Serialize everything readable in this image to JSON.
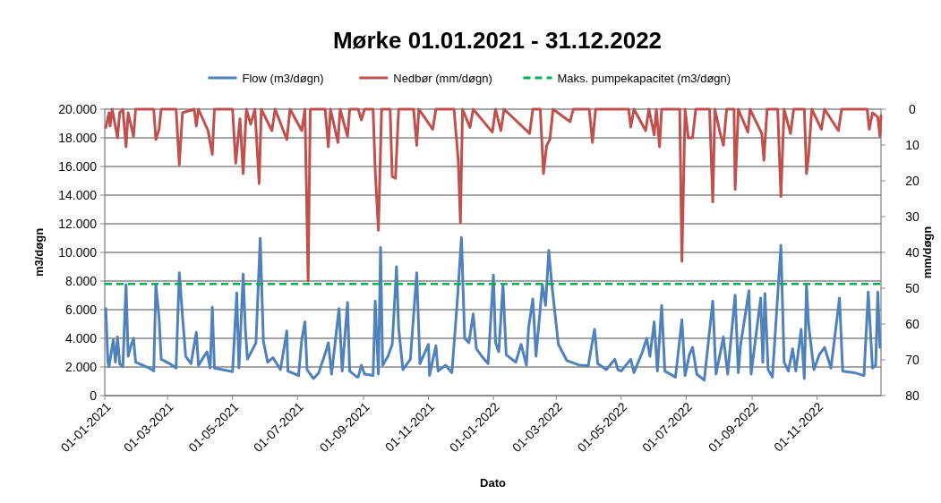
{
  "chart_data": {
    "type": "line",
    "title": "Mørke 01.01.2021 - 31.12.2022",
    "xlabel": "Dato",
    "ylabel": "m3/døgn",
    "y2label": "mm/døgn",
    "legend": "top",
    "grid": "y",
    "xlim": [
      "2021-01-01",
      "2022-12-31"
    ],
    "xticks": [
      {
        "value": "2021-01-01",
        "label": "01-01-2021"
      },
      {
        "value": "2021-03-01",
        "label": "01-03-2021"
      },
      {
        "value": "2021-05-01",
        "label": "01-05-2021"
      },
      {
        "value": "2021-07-01",
        "label": "01-07-2021"
      },
      {
        "value": "2021-09-01",
        "label": "01-09-2021"
      },
      {
        "value": "2021-11-01",
        "label": "01-11-2021"
      },
      {
        "value": "2022-01-01",
        "label": "01-01-2022"
      },
      {
        "value": "2022-03-01",
        "label": "01-03-2022"
      },
      {
        "value": "2022-05-01",
        "label": "01-05-2022"
      },
      {
        "value": "2022-07-01",
        "label": "01-07-2022"
      },
      {
        "value": "2022-09-01",
        "label": "01-09-2022"
      },
      {
        "value": "2022-11-01",
        "label": "01-11-2022"
      }
    ],
    "ylim": [
      0,
      20000
    ],
    "yticks": [
      0,
      {
        "value": 2000,
        "label": "2.000"
      },
      {
        "value": 4000,
        "label": "4.000"
      },
      {
        "value": 6000,
        "label": "6.000"
      },
      {
        "value": 8000,
        "label": "8.000"
      },
      {
        "value": 10000,
        "label": "10.000"
      },
      {
        "value": 12000,
        "label": "12.000"
      },
      {
        "value": 14000,
        "label": "14.000"
      },
      {
        "value": 16000,
        "label": "16.000"
      },
      {
        "value": 18000,
        "label": "18.000"
      },
      {
        "value": 20000,
        "label": "20.000"
      }
    ],
    "y2lim": [
      80,
      0
    ],
    "y2ticks": [
      0,
      10,
      20,
      30,
      40,
      50,
      60,
      70,
      80
    ],
    "series": [
      {
        "name": "Flow (m3/døgn)",
        "color": "#4f81bd",
        "x": [
          "2021-01-02",
          "2021-01-04",
          "2021-01-05",
          "2021-01-09",
          "2021-01-11",
          "2021-01-13",
          "2021-01-15",
          "2021-01-18",
          "2021-01-21",
          "2021-01-23",
          "2021-01-26",
          "2021-01-28",
          "2021-01-30",
          "2021-02-12",
          "2021-02-16",
          "2021-02-18",
          "2021-02-21",
          "2021-02-23",
          "2021-03-03",
          "2021-03-09",
          "2021-03-12",
          "2021-03-15",
          "2021-03-18",
          "2021-03-23",
          "2021-03-28",
          "2021-03-30",
          "2021-04-07",
          "2021-04-10",
          "2021-04-12",
          "2021-04-14",
          "2021-05-01",
          "2021-05-05",
          "2021-05-07",
          "2021-05-11",
          "2021-05-13",
          "2021-05-15",
          "2021-05-23",
          "2021-05-27",
          "2021-05-30",
          "2021-06-03",
          "2021-06-08",
          "2021-06-15",
          "2021-06-21",
          "2021-06-22",
          "2021-07-02",
          "2021-07-05",
          "2021-07-08",
          "2021-07-10",
          "2021-07-16",
          "2021-07-21",
          "2021-07-28",
          "2021-07-30",
          "2021-08-02",
          "2021-08-09",
          "2021-08-12",
          "2021-08-17",
          "2021-08-19",
          "2021-08-26",
          "2021-08-27",
          "2021-08-30",
          "2021-09-02",
          "2021-09-10",
          "2021-09-12",
          "2021-09-15",
          "2021-09-17",
          "2021-09-19",
          "2021-09-24",
          "2021-09-28",
          "2021-10-02",
          "2021-10-04",
          "2021-10-08",
          "2021-10-15",
          "2021-10-21",
          "2021-10-24",
          "2021-11-01",
          "2021-11-02",
          "2021-11-08",
          "2021-11-10",
          "2021-11-17",
          "2021-11-23",
          "2021-11-28",
          "2021-12-02",
          "2021-12-05",
          "2021-12-09",
          "2021-12-13",
          "2021-12-16",
          "2021-12-21",
          "2021-12-27",
          "2022-01-01",
          "2022-01-03",
          "2022-01-06",
          "2022-01-10",
          "2022-01-13",
          "2022-01-22",
          "2022-01-27",
          "2022-02-01",
          "2022-02-03",
          "2022-02-07",
          "2022-02-10",
          "2022-02-16",
          "2022-02-19",
          "2022-02-22",
          "2022-02-25",
          "2022-03-03",
          "2022-03-11",
          "2022-03-23",
          "2022-03-31",
          "2022-04-06",
          "2022-04-09",
          "2022-04-17",
          "2022-04-25",
          "2022-04-28",
          "2022-05-01",
          "2022-05-10",
          "2022-05-13",
          "2022-05-21",
          "2022-05-25",
          "2022-05-28",
          "2022-06-01",
          "2022-06-04",
          "2022-06-08",
          "2022-06-11",
          "2022-06-21",
          "2022-06-27",
          "2022-06-30",
          "2022-07-04",
          "2022-07-07",
          "2022-07-11",
          "2022-07-18",
          "2022-07-26",
          "2022-07-29",
          "2022-08-02",
          "2022-08-05",
          "2022-08-09",
          "2022-08-16",
          "2022-08-19",
          "2022-08-21",
          "2022-08-29",
          "2022-08-31",
          "2022-09-09",
          "2022-09-11",
          "2022-09-13",
          "2022-09-16",
          "2022-09-20",
          "2022-09-28",
          "2022-10-01",
          "2022-10-05",
          "2022-10-09",
          "2022-10-12",
          "2022-10-17",
          "2022-10-20",
          "2022-10-22",
          "2022-10-24",
          "2022-10-29",
          "2022-11-03",
          "2022-11-08",
          "2022-11-14",
          "2022-11-22",
          "2022-11-25",
          "2022-12-06",
          "2022-12-15",
          "2022-12-19",
          "2022-12-23",
          "2022-12-26",
          "2022-12-28",
          "2022-12-30"
        ],
        "values": [
          6080,
          2330,
          2020,
          3900,
          2330,
          4100,
          2230,
          2020,
          7750,
          2750,
          3580,
          4000,
          2330,
          1920,
          1710,
          7750,
          5460,
          2540,
          2230,
          1920,
          8580,
          5560,
          2750,
          2230,
          4420,
          2120,
          3060,
          1920,
          6190,
          1920,
          1670,
          7170,
          1920,
          8480,
          4730,
          2540,
          3690,
          10980,
          3790,
          2330,
          2650,
          1810,
          4520,
          1710,
          1400,
          3900,
          5150,
          1810,
          1190,
          1600,
          3170,
          3690,
          1500,
          6080,
          1710,
          6500,
          1710,
          1290,
          1290,
          2120,
          1500,
          1400,
          6600,
          1500,
          10350,
          2120,
          2750,
          3580,
          9000,
          4730,
          1810,
          2540,
          8580,
          2230,
          3580,
          1400,
          3480,
          1710,
          2120,
          1600,
          6500,
          11040,
          4000,
          3690,
          5710,
          3270,
          2750,
          2230,
          8420,
          3690,
          3060,
          7750,
          2850,
          2330,
          3580,
          2120,
          4730,
          6750,
          2750,
          7750,
          6290,
          10140,
          7650,
          3580,
          2440,
          2120,
          2080,
          4620,
          2230,
          1810,
          2540,
          1810,
          1710,
          2540,
          1600,
          3060,
          4000,
          2750,
          5150,
          1710,
          6290,
          1710,
          1290,
          5290,
          1400,
          2850,
          3370,
          1500,
          1080,
          6600,
          1500,
          2960,
          4100,
          1500,
          7020,
          1600,
          3480,
          7330,
          1500,
          6810,
          2330,
          7120,
          1810,
          1290,
          10500,
          2330,
          1710,
          3270,
          1710,
          4620,
          1190,
          7750,
          4940,
          1810,
          2850,
          3370,
          1920,
          6810,
          1710,
          1600,
          1400,
          7230,
          1920,
          2120,
          7230,
          3370
        ]
      },
      {
        "name": "Nedbør (mm/døgn)",
        "color": "#c0504d",
        "axis": "y2",
        "x": [
          "2021-01-02",
          "2021-01-05",
          "2021-01-06",
          "2021-01-08",
          "2021-01-13",
          "2021-01-15",
          "2021-01-18",
          "2021-01-21",
          "2021-01-23",
          "2021-01-28",
          "2021-01-30",
          "2021-02-16",
          "2021-02-18",
          "2021-02-21",
          "2021-02-23",
          "2021-03-09",
          "2021-03-12",
          "2021-03-15",
          "2021-03-26",
          "2021-03-28",
          "2021-03-30",
          "2021-04-08",
          "2021-04-12",
          "2021-04-14",
          "2021-05-01",
          "2021-05-04",
          "2021-05-08",
          "2021-05-11",
          "2021-05-14",
          "2021-05-18",
          "2021-05-22",
          "2021-05-26",
          "2021-05-28",
          "2021-06-07",
          "2021-06-10",
          "2021-06-21",
          "2021-06-24",
          "2021-07-05",
          "2021-07-08",
          "2021-07-11",
          "2021-07-13",
          "2021-07-27",
          "2021-07-30",
          "2021-08-01",
          "2021-08-08",
          "2021-08-10",
          "2021-08-17",
          "2021-08-19",
          "2021-08-27",
          "2021-08-30",
          "2021-09-02",
          "2021-09-10",
          "2021-09-12",
          "2021-09-15",
          "2021-09-18",
          "2021-09-26",
          "2021-09-28",
          "2021-10-01",
          "2021-10-04",
          "2021-10-18",
          "2021-10-21",
          "2021-10-23",
          "2021-11-05",
          "2021-11-08",
          "2021-11-25",
          "2021-11-29",
          "2021-12-01",
          "2021-12-03",
          "2021-12-10",
          "2021-12-13",
          "2021-12-31",
          "2022-01-03",
          "2022-01-08",
          "2022-01-11",
          "2022-02-04",
          "2022-02-07",
          "2022-02-14",
          "2022-02-17",
          "2022-02-20",
          "2022-02-23",
          "2022-02-26",
          "2022-03-14",
          "2022-03-17",
          "2022-04-01",
          "2022-04-04",
          "2022-04-07",
          "2022-05-08",
          "2022-05-10",
          "2022-05-13",
          "2022-05-24",
          "2022-05-27",
          "2022-06-01",
          "2022-06-03",
          "2022-06-06",
          "2022-06-08",
          "2022-06-25",
          "2022-06-27",
          "2022-06-30",
          "2022-07-03",
          "2022-07-07",
          "2022-07-10",
          "2022-07-23",
          "2022-07-26",
          "2022-07-28",
          "2022-08-02",
          "2022-08-05",
          "2022-08-08",
          "2022-08-15",
          "2022-08-16",
          "2022-08-19",
          "2022-08-28",
          "2022-08-30",
          "2022-09-10",
          "2022-09-12",
          "2022-09-15",
          "2022-09-25",
          "2022-09-28",
          "2022-10-01",
          "2022-10-07",
          "2022-10-10",
          "2022-10-20",
          "2022-10-22",
          "2022-10-24",
          "2022-10-27",
          "2022-11-05",
          "2022-11-08",
          "2022-11-21",
          "2022-11-24",
          "2022-12-18",
          "2022-12-20",
          "2022-12-23",
          "2022-12-28",
          "2022-12-30",
          "2022-12-31"
        ],
        "values": [
          5.1,
          1,
          4.7,
          0,
          8,
          1,
          0,
          10.5,
          1,
          7.6,
          0,
          0,
          8.5,
          5.6,
          0,
          0,
          15.5,
          1,
          0,
          4.7,
          0,
          6,
          12.6,
          0,
          0,
          15.1,
          2.7,
          18,
          0,
          4.2,
          0,
          20.8,
          0,
          6,
          0,
          8.5,
          0,
          6,
          0,
          48,
          0,
          0,
          10.5,
          0,
          9.3,
          0,
          7.6,
          0,
          0,
          3,
          0,
          0,
          17.2,
          33.8,
          0,
          0,
          18.8,
          19.3,
          0,
          0,
          10.1,
          0,
          5.6,
          0,
          0,
          14.3,
          31.7,
          0,
          5.1,
          0,
          6.4,
          0,
          6,
          0,
          6.8,
          0,
          0,
          18,
          10.1,
          8.5,
          0,
          3.5,
          0,
          0,
          9.3,
          0,
          0,
          5,
          0,
          6,
          0,
          7.2,
          0,
          10.5,
          0,
          0,
          42.5,
          0,
          8,
          8,
          0,
          0,
          25.9,
          0,
          6.8,
          10.1,
          0,
          0,
          22.4,
          0,
          6.4,
          0,
          6.8,
          14.3,
          0,
          0,
          24.4,
          0,
          6.8,
          0,
          0,
          18,
          13,
          0,
          5.6,
          0,
          6,
          0,
          0,
          5.6,
          1,
          2.2,
          7.6,
          1.8
        ]
      }
    ],
    "ref_lines": [
      {
        "axis": "y",
        "value": 7800,
        "label": "Maks. pumpekapacitet (m3/døgn)",
        "color": "#00b050",
        "line_style": "dashed"
      }
    ]
  }
}
